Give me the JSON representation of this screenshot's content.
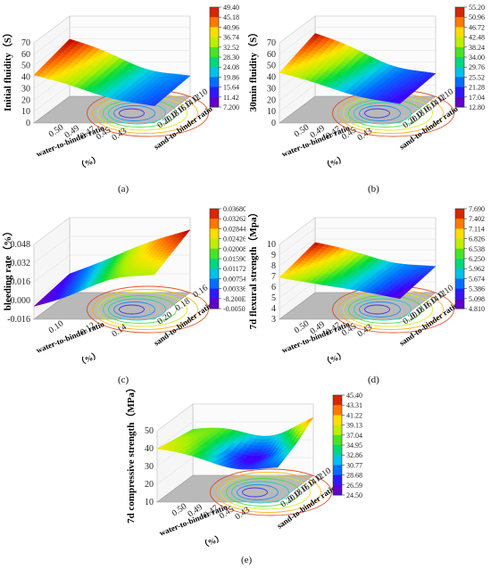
{
  "figure": {
    "panels": [
      "a",
      "b",
      "c",
      "d",
      "e"
    ]
  },
  "chart_data": [
    {
      "id": "a",
      "type": "surface3d",
      "caption": "(a)",
      "zlabel": "Initial fluidity（S）",
      "xlabel": "water-to-binder ratio",
      "ylabel": "sand-to-binder ratio",
      "zticks": [
        "0",
        "10",
        "20",
        "30",
        "40",
        "50",
        "60",
        "70"
      ],
      "xticks": [
        "0.50",
        "0.49",
        "0.47",
        "0.45",
        "0.43"
      ],
      "yticks": [
        "0.10",
        "0.12",
        "0.14",
        "0.16",
        "0.18",
        "0.20"
      ],
      "x_unit": "（%）",
      "colorbar": [
        "49.40",
        "45.18",
        "40.96",
        "36.74",
        "32.52",
        "28.30",
        "24.08",
        "19.86",
        "15.64",
        "11.42",
        "7.200"
      ],
      "zlim": [
        0,
        70
      ],
      "surface_corners": {
        "left_back": 50,
        "left_front": 42,
        "valley": 12,
        "right_back": 20,
        "right_front": 16
      }
    },
    {
      "id": "b",
      "type": "surface3d",
      "caption": "(b)",
      "zlabel": "30min fluidity（S）",
      "xlabel": "water-to-binder ratio",
      "ylabel": "sand-to-binder ratio",
      "zticks": [
        "0",
        "10",
        "20",
        "30",
        "40",
        "50",
        "60",
        "70"
      ],
      "xticks": [
        "0.50",
        "0.49",
        "0.47",
        "0.45",
        "0.43"
      ],
      "yticks": [
        "0.10",
        "0.12",
        "0.14",
        "0.16",
        "0.18",
        "0.20"
      ],
      "x_unit": "（%）",
      "colorbar": [
        "55.20",
        "50.96",
        "46.72",
        "42.48",
        "38.24",
        "34.00",
        "29.76",
        "25.52",
        "21.28",
        "17.04",
        "12.80"
      ],
      "zlim": [
        0,
        70
      ],
      "surface_corners": {
        "left_back": 55,
        "left_front": 44,
        "valley": 14,
        "right_back": 22,
        "right_front": 18
      }
    },
    {
      "id": "c",
      "type": "surface3d",
      "caption": "(c)",
      "zlabel": "bleeding rate（%）",
      "xlabel": "water-to-binder ratio",
      "ylabel": "sand-to-binder ratio",
      "zticks": [
        "-0.016",
        "0.000",
        "0.016",
        "0.032",
        "0.048"
      ],
      "xticks": [
        "0.10",
        "0.12",
        "0.14"
      ],
      "yticks": [
        "0.16",
        "0.18",
        "0.20"
      ],
      "x_unit": "（%）",
      "colorbar": [
        "0.03680",
        "0.03262",
        "0.02844",
        "0.02426",
        "0.02008",
        "0.01590",
        "0.01172",
        "0.007540",
        "0.003360",
        "-8.200E-4",
        "-0.005000"
      ],
      "zlim": [
        -0.016,
        0.048
      ],
      "surface_corners": {
        "left_back": 0.0,
        "left_front": -0.005,
        "valley": 0.003,
        "right_back": 0.0368,
        "right_front": 0.02
      }
    },
    {
      "id": "d",
      "type": "surface3d",
      "caption": "(d)",
      "zlabel": "7d flexural strength（Mpa）",
      "xlabel": "water-to-binder ratio",
      "ylabel": "sand-to-binder ratio",
      "zticks": [
        "3",
        "4",
        "5",
        "6",
        "7",
        "8",
        "9",
        "10"
      ],
      "xticks": [
        "0.50",
        "0.49",
        "0.47",
        "0.45",
        "0.43"
      ],
      "yticks": [
        "0.10",
        "0.12",
        "0.14",
        "0.16",
        "0.18",
        "0.20"
      ],
      "x_unit": "（%）",
      "colorbar": [
        "7.690",
        "7.402",
        "7.114",
        "6.826",
        "6.538",
        "6.250",
        "5.962",
        "5.674",
        "5.386",
        "5.098",
        "4.810"
      ],
      "zlim": [
        3,
        10
      ],
      "surface_corners": {
        "left_back": 7.69,
        "left_front": 6.9,
        "valley": 5.0,
        "right_back": 5.6,
        "right_front": 4.9
      }
    },
    {
      "id": "e",
      "type": "surface3d",
      "caption": "(e)",
      "zlabel": "7d compressive strength（MPa）",
      "xlabel": "water-to-binder ratio",
      "ylabel": "sand-to-binder ratio",
      "zticks": [
        "10",
        "20",
        "30",
        "40",
        "50"
      ],
      "xticks": [
        "0.50",
        "0.49",
        "0.47",
        "0.45",
        "0.43"
      ],
      "yticks": [
        "0.10",
        "0.12",
        "0.14",
        "0.16",
        "0.18",
        "0.20"
      ],
      "x_unit": "（%）",
      "colorbar": [
        "45.40",
        "43.31",
        "41.22",
        "39.13",
        "37.04",
        "34.95",
        "32.86",
        "30.77",
        "28.68",
        "26.59",
        "24.50"
      ],
      "zlim": [
        10,
        50
      ],
      "surface_corners": {
        "left_back": 36,
        "left_front": 40,
        "valley": 25,
        "right_back": 45.4,
        "right_front": 31
      }
    }
  ]
}
